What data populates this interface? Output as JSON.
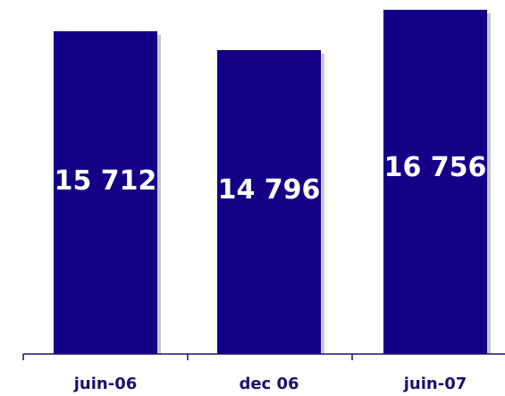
{
  "chart_data": {
    "type": "bar",
    "categories": [
      "juin-06",
      "dec 06",
      "juin-07"
    ],
    "values": [
      15712,
      14796,
      16756
    ],
    "value_labels": [
      "15 712",
      "14 796",
      "16 756"
    ],
    "title": "",
    "xlabel": "",
    "ylabel": "",
    "grid": false,
    "legend": "none",
    "colors": {
      "bar": "#140087",
      "bar_shadow": "#c9c9c9",
      "axis": "#1a1070",
      "tick_text": "#1a1070",
      "value_text": "#ffffff"
    }
  }
}
